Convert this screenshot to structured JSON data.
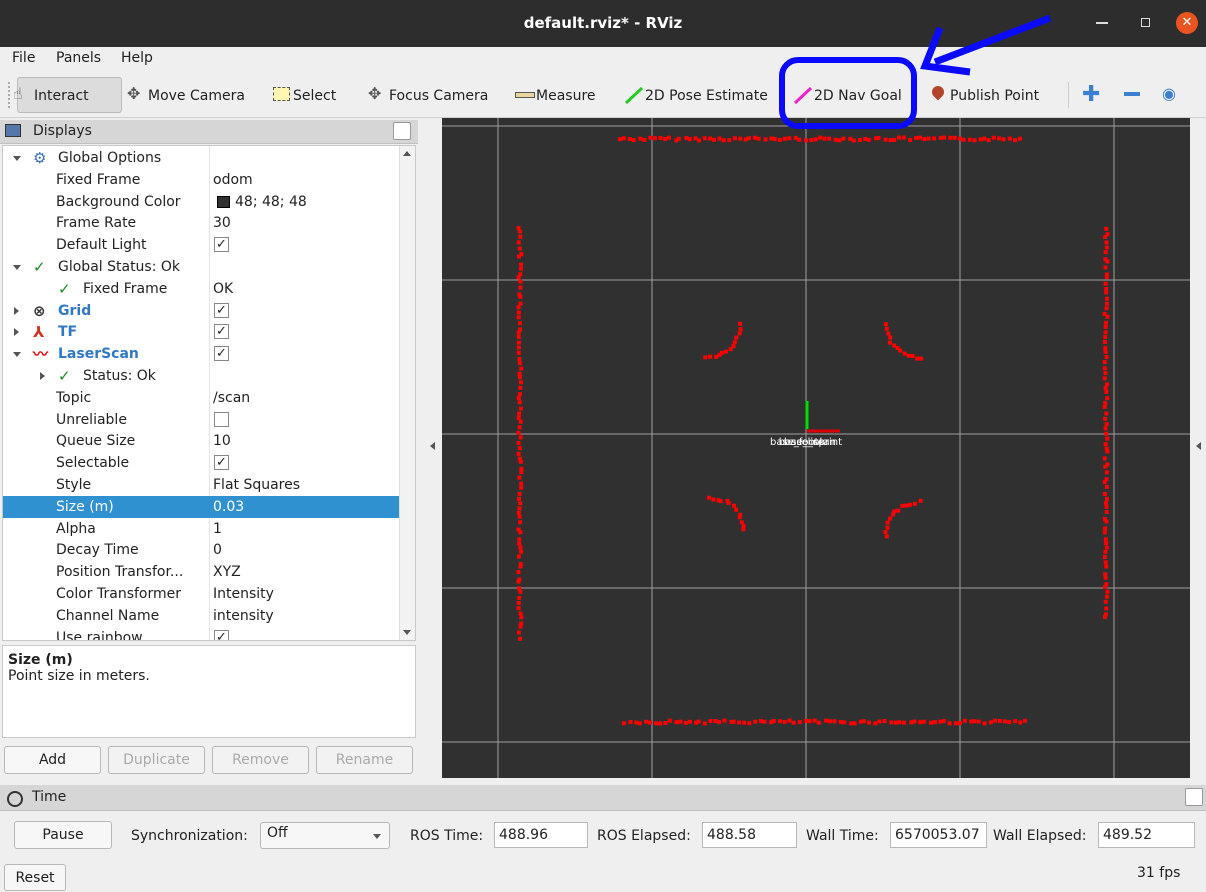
{
  "window": {
    "title": "default.rviz* - RViz"
  },
  "menu": [
    "File",
    "Panels",
    "Help"
  ],
  "toolbar": [
    "Interact",
    "Move Camera",
    "Select",
    "Focus Camera",
    "Measure",
    "2D Pose Estimate",
    "2D Nav Goal",
    "Publish Point"
  ],
  "displays": {
    "title": "Displays",
    "rows": [
      {
        "name": "Global Options",
        "level": 0,
        "icon": "gear",
        "expanded": true
      },
      {
        "name": "Fixed Frame",
        "level": 1,
        "value": "odom"
      },
      {
        "name": "Background Color",
        "level": 1,
        "value": "48; 48; 48",
        "swatch": true
      },
      {
        "name": "Frame Rate",
        "level": 1,
        "value": "30"
      },
      {
        "name": "Default Light",
        "level": 1,
        "check": true
      },
      {
        "name": "Global Status: Ok",
        "level": 0,
        "icon": "check",
        "expanded": true
      },
      {
        "name": "Fixed Frame",
        "level": 1,
        "icon": "check",
        "value": "OK"
      },
      {
        "name": "Grid",
        "level": 0,
        "icon": "grid",
        "expanded": false,
        "display": true,
        "check": true
      },
      {
        "name": "TF",
        "level": 0,
        "icon": "tf",
        "expanded": false,
        "display": true,
        "check": true
      },
      {
        "name": "LaserScan",
        "level": 0,
        "icon": "laser",
        "expanded": true,
        "display": true,
        "check": true
      },
      {
        "name": "Status: Ok",
        "level": 1,
        "icon": "check",
        "expanded": false
      },
      {
        "name": "Topic",
        "level": 1,
        "value": "/scan"
      },
      {
        "name": "Unreliable",
        "level": 1,
        "check": false
      },
      {
        "name": "Queue Size",
        "level": 1,
        "value": "10"
      },
      {
        "name": "Selectable",
        "level": 1,
        "check": true
      },
      {
        "name": "Style",
        "level": 1,
        "value": "Flat Squares"
      },
      {
        "name": "Size (m)",
        "level": 1,
        "value": "0.03",
        "selected": true
      },
      {
        "name": "Alpha",
        "level": 1,
        "value": "1"
      },
      {
        "name": "Decay Time",
        "level": 1,
        "value": "0"
      },
      {
        "name": "Position Transfor...",
        "level": 1,
        "value": "XYZ"
      },
      {
        "name": "Color Transformer",
        "level": 1,
        "value": "Intensity"
      },
      {
        "name": "Channel Name",
        "level": 1,
        "value": "intensity"
      },
      {
        "name": "Use rainbow",
        "level": 1,
        "check": true
      }
    ],
    "description": {
      "title": "Size (m)",
      "text": "Point size in meters."
    },
    "buttons": [
      {
        "label": "Add",
        "enabled": true
      },
      {
        "label": "Duplicate",
        "enabled": false
      },
      {
        "label": "Remove",
        "enabled": false
      },
      {
        "label": "Rename",
        "enabled": false
      }
    ]
  },
  "viewport": {
    "frame_labels": [
      "base_link",
      "base_footprint",
      "base_scan"
    ]
  },
  "time": {
    "title": "Time",
    "pause": "Pause",
    "sync_label": "Synchronization:",
    "sync_value": "Off",
    "fields": [
      {
        "label": "ROS Time:",
        "value": "488.96"
      },
      {
        "label": "ROS Elapsed:",
        "value": "488.58"
      },
      {
        "label": "Wall Time:",
        "value": "6570053.07"
      },
      {
        "label": "Wall Elapsed:",
        "value": "489.52"
      }
    ],
    "reset": "Reset",
    "fps": "31 fps"
  }
}
